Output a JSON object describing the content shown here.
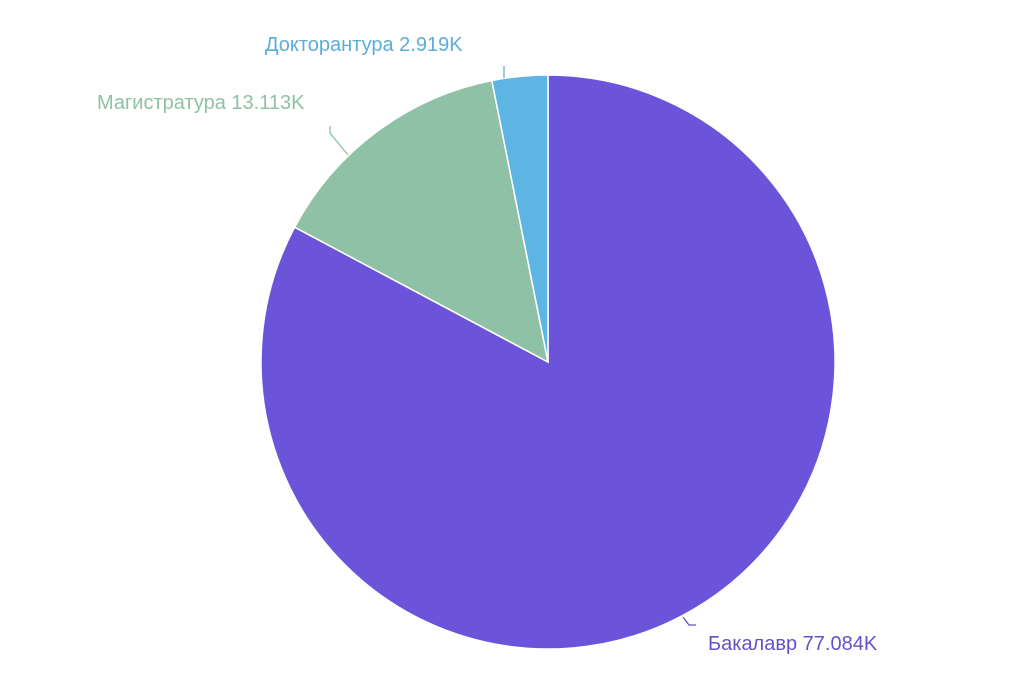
{
  "chart_data": {
    "type": "pie",
    "categories": [
      "Бакалавр",
      "Магистратура",
      "Докторантура"
    ],
    "values": [
      77.084,
      13.113,
      2.919
    ],
    "value_labels": [
      "77.084K",
      "13.113K",
      "2.919K"
    ],
    "labels": [
      "Бакалавр 77.084K",
      "Магистратура 13.113K",
      "Докторантура 2.919K"
    ],
    "colors": [
      "#6b54da",
      "#8fc1a6",
      "#5db5e3"
    ],
    "label_colors": [
      "#6552c9",
      "#8fc1a6",
      "#5aaed8"
    ],
    "start_angle": "12 o'clock",
    "direction": "clockwise",
    "legend": "none"
  }
}
